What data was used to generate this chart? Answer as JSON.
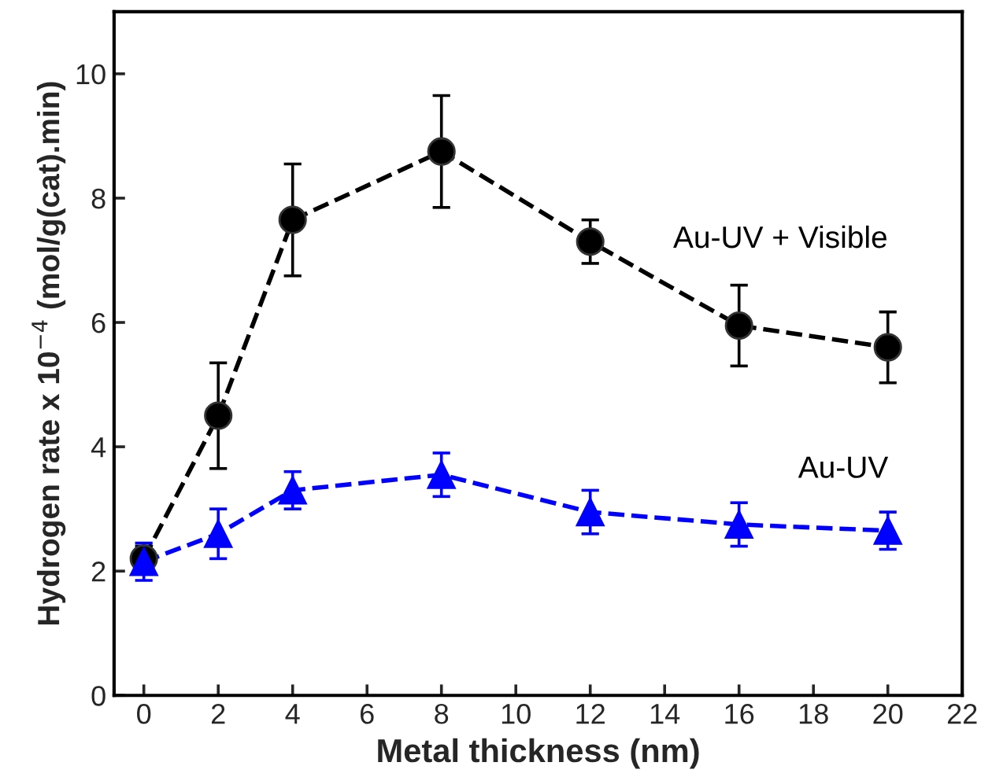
{
  "chart_data": {
    "type": "line",
    "xlabel": "Metal thickness (nm)",
    "ylabel": "Hydrogen rate x 10$^{−4}$ (mol/g(cat).min)",
    "x": [
      0,
      2,
      4,
      8,
      12,
      16,
      20
    ],
    "series": [
      {
        "name": "Au-UV + Visible",
        "color": "#000000",
        "marker": "circle",
        "values": [
          2.2,
          4.5,
          7.65,
          8.75,
          7.3,
          5.95,
          5.6
        ],
        "errors": [
          0.2,
          0.85,
          0.9,
          0.9,
          0.35,
          0.65,
          0.57
        ]
      },
      {
        "name": "Au-UV",
        "color": "#0000ff",
        "marker": "triangle",
        "values": [
          2.15,
          2.6,
          3.3,
          3.55,
          2.95,
          2.75,
          2.65
        ],
        "errors": [
          0.3,
          0.4,
          0.3,
          0.35,
          0.35,
          0.35,
          0.3
        ]
      }
    ],
    "line_style": "dashed",
    "xlim": [
      -0.8,
      22
    ],
    "ylim": [
      0,
      11
    ],
    "xticks": [
      0,
      2,
      4,
      6,
      8,
      10,
      12,
      14,
      16,
      18,
      20,
      22
    ],
    "yticks": [
      0,
      2,
      4,
      6,
      8,
      10
    ],
    "grid": false,
    "legend": false
  }
}
